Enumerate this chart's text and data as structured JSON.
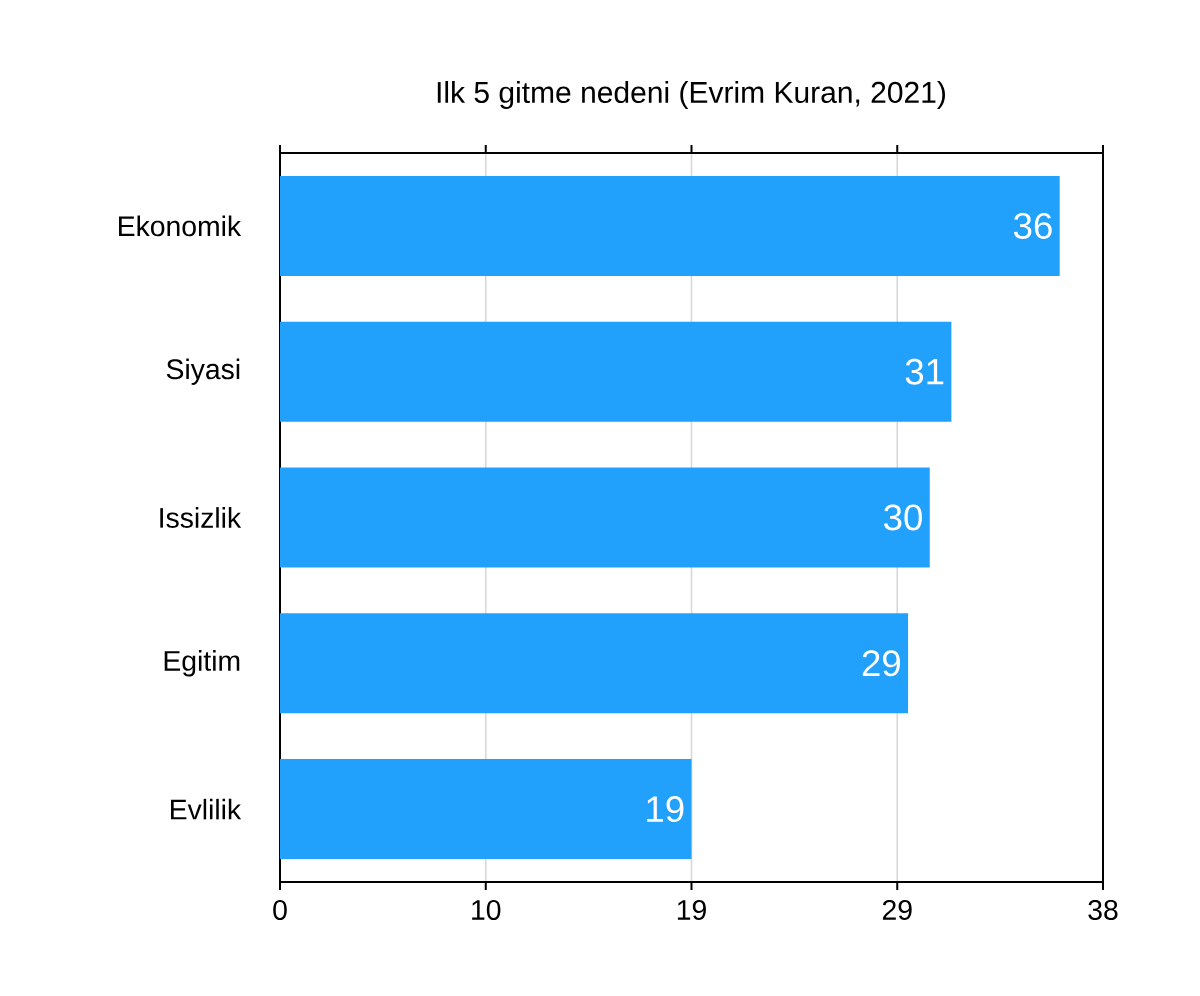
{
  "chart_data": {
    "type": "bar",
    "orientation": "horizontal",
    "title": "Ilk 5 gitme nedeni (Evrim Kuran, 2021)",
    "categories": [
      "Ekonomik",
      "Siyasi",
      "Issizlik",
      "Egitim",
      "Evlilik"
    ],
    "values": [
      36,
      31,
      30,
      29,
      19
    ],
    "color": "#22a1fc",
    "xlim": [
      0,
      38
    ],
    "xticks": [
      0,
      {
        "value": 9.5,
        "label": "10"
      },
      19,
      {
        "value": 28.5,
        "label": "29"
      },
      38
    ],
    "grid": "x",
    "data_labels": true
  }
}
